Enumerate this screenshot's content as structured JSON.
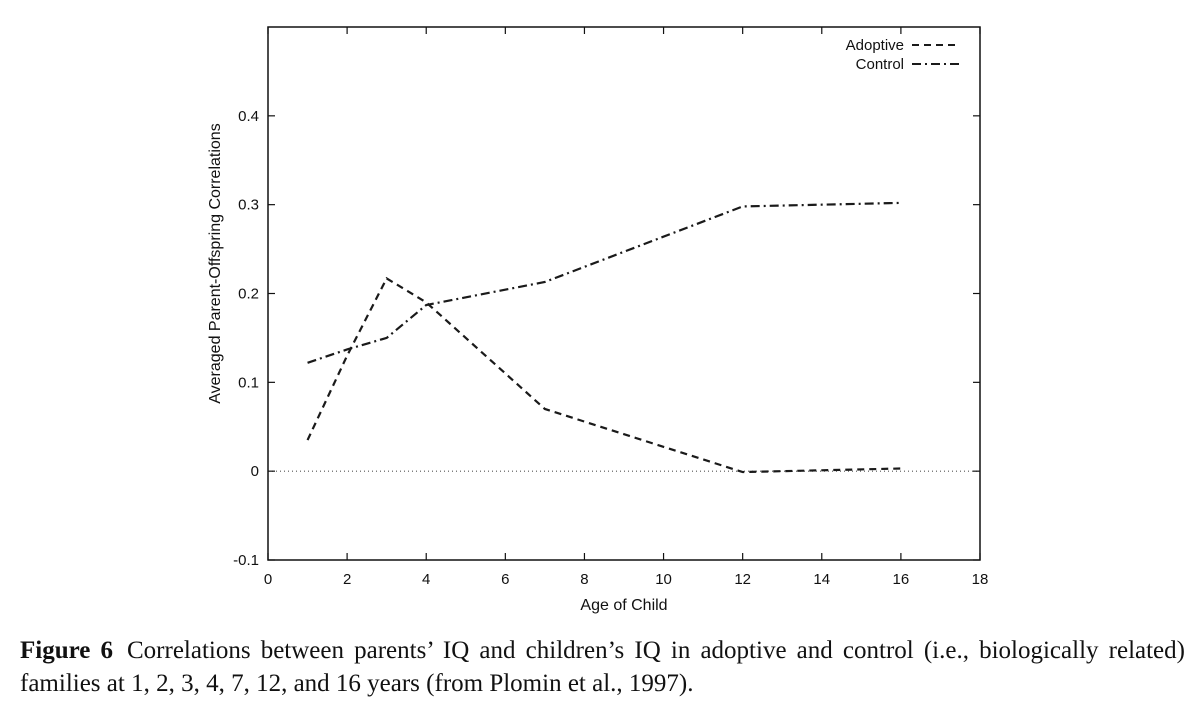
{
  "chart_data": {
    "type": "line",
    "title": "",
    "xlabel": "Age of Child",
    "ylabel": "Averaged Parent-Offspring Correlations",
    "xlim": [
      0,
      18
    ],
    "ylim": [
      -0.1,
      0.5
    ],
    "xticks": [
      0,
      2,
      4,
      6,
      8,
      10,
      12,
      14,
      16,
      18
    ],
    "yticks": [
      -0.1,
      0,
      0.1,
      0.2,
      0.3,
      0.4
    ],
    "xtick_labels": [
      "0",
      "2",
      "4",
      "6",
      "8",
      "10",
      "12",
      "14",
      "16",
      "18"
    ],
    "ytick_labels": [
      "-0.1",
      "0",
      "0.1",
      "0.2",
      "0.3",
      "0.4"
    ],
    "grid": false,
    "legend_position": "top-right",
    "reference_line": {
      "y": 0,
      "style": "dotted"
    },
    "series": [
      {
        "name": "Adoptive",
        "style": "dashed",
        "x": [
          1,
          2,
          3,
          4,
          7,
          12,
          16
        ],
        "y": [
          0.035,
          0.13,
          0.217,
          0.19,
          0.07,
          -0.001,
          0.003
        ]
      },
      {
        "name": "Control",
        "style": "dashdot",
        "x": [
          1,
          2,
          3,
          4,
          7,
          12,
          16
        ],
        "y": [
          0.122,
          0.137,
          0.15,
          0.187,
          0.213,
          0.298,
          0.302
        ]
      }
    ]
  },
  "caption": {
    "label": "Figure 6",
    "text": "Correlations between parents’ IQ and children’s IQ in adoptive and control (i.e., biologically related) families at 1, 2, 3, 4, 7, 12, and 16 years (from Plomin et al., 1997)."
  },
  "colors": {
    "line": "#1a1a1a",
    "axis": "#111111",
    "background": "#ffffff"
  }
}
